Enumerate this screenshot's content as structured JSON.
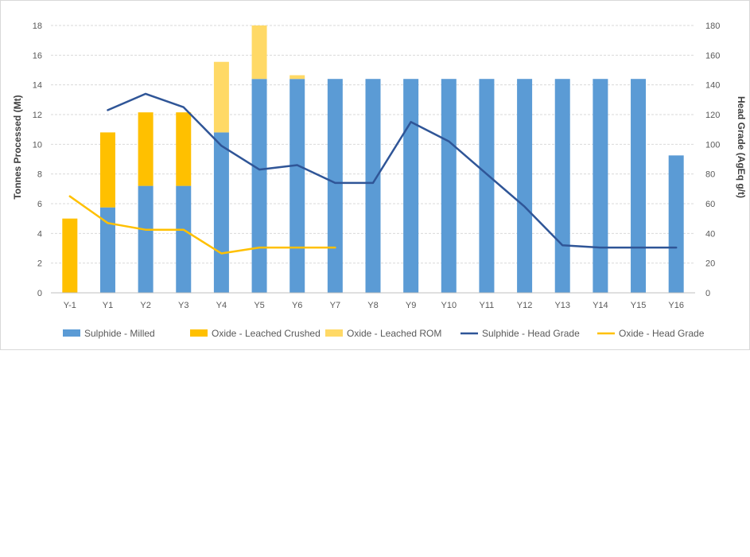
{
  "chart_data": {
    "type": "bar",
    "stacked": true,
    "categories": [
      "Y-1",
      "Y1",
      "Y2",
      "Y3",
      "Y4",
      "Y5",
      "Y6",
      "Y7",
      "Y8",
      "Y9",
      "Y10",
      "Y11",
      "Y12",
      "Y13",
      "Y14",
      "Y15",
      "Y16"
    ],
    "series": [
      {
        "name": "Sulphide - Milled",
        "type": "bar",
        "axis": "left",
        "color": "#5b9bd5",
        "values": [
          0,
          5.75,
          7.2,
          7.2,
          10.8,
          14.4,
          14.4,
          14.4,
          14.4,
          14.4,
          14.4,
          14.4,
          14.4,
          14.4,
          14.4,
          14.4,
          9.25
        ]
      },
      {
        "name": "Oxide - Leached Crushed",
        "type": "bar",
        "axis": "left",
        "color": "#ffc000",
        "values": [
          5.0,
          5.05,
          4.95,
          4.95,
          0,
          0,
          0,
          0,
          0,
          0,
          0,
          0,
          0,
          0,
          0,
          0,
          0
        ]
      },
      {
        "name": "Oxide - Leached ROM",
        "type": "bar",
        "axis": "left",
        "color": "#ffd966",
        "values": [
          0,
          0,
          0,
          0,
          4.75,
          3.6,
          0.25,
          0,
          0,
          0,
          0,
          0,
          0,
          0,
          0,
          0,
          0
        ]
      },
      {
        "name": "Sulphide - Head Grade",
        "type": "line",
        "axis": "right",
        "color": "#2f5597",
        "values": [
          null,
          123,
          134,
          125,
          99,
          83,
          86,
          74,
          74,
          115,
          102,
          80,
          58,
          32,
          30.5,
          30.5,
          30.5
        ]
      },
      {
        "name": "Oxide - Head Grade",
        "type": "line",
        "axis": "right",
        "color": "#ffc000",
        "values": [
          65,
          47,
          42.5,
          42.5,
          26.5,
          30.5,
          30.5,
          30.5,
          null,
          null,
          null,
          null,
          null,
          null,
          null,
          null,
          null
        ]
      }
    ],
    "ylabel": "Tonnes Processed (Mt)",
    "y2label": "Head Grade (AgEq g/t)",
    "ylim": [
      0,
      18
    ],
    "y2lim": [
      0,
      180
    ],
    "yticks": [
      "0",
      "2",
      "4",
      "6",
      "8",
      "10",
      "12",
      "14",
      "16",
      "18"
    ],
    "y2ticks": [
      "0",
      "20",
      "40",
      "60",
      "80",
      "100",
      "120",
      "140",
      "160",
      "180"
    ],
    "grid": true,
    "legend": "bottom"
  }
}
